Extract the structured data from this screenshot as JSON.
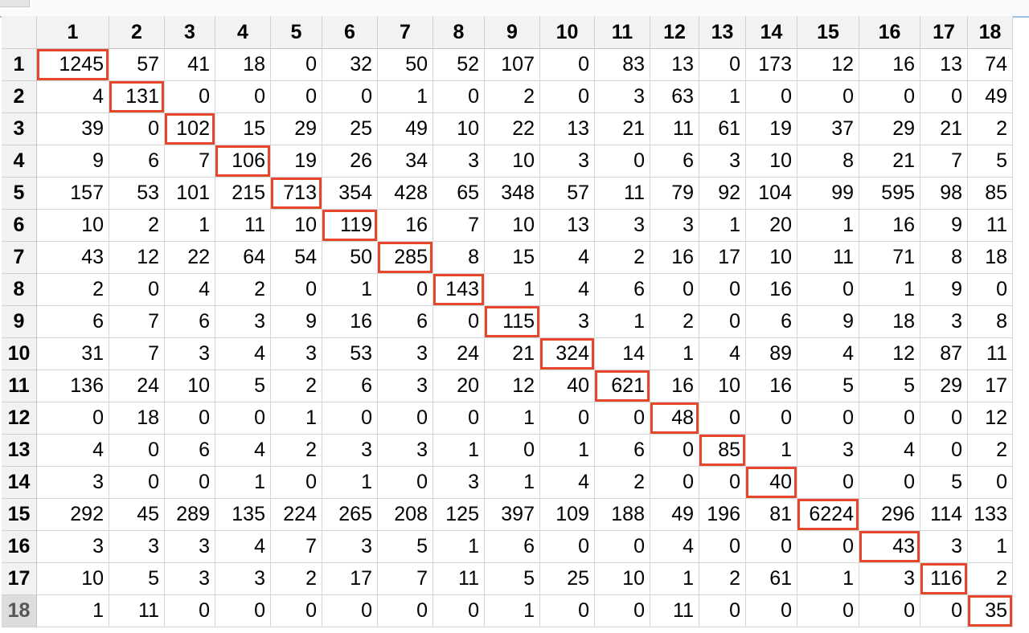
{
  "accent_color": "#e5472a",
  "selected_row": 18,
  "columns": [
    "1",
    "2",
    "3",
    "4",
    "5",
    "6",
    "7",
    "8",
    "9",
    "10",
    "11",
    "12",
    "13",
    "14",
    "15",
    "16",
    "17",
    "18"
  ],
  "rows": [
    {
      "label": "1",
      "cells": [
        "1245",
        "57",
        "41",
        "18",
        "0",
        "32",
        "50",
        "52",
        "107",
        "0",
        "83",
        "13",
        "0",
        "173",
        "12",
        "16",
        "13",
        "74"
      ]
    },
    {
      "label": "2",
      "cells": [
        "4",
        "131",
        "0",
        "0",
        "0",
        "0",
        "1",
        "0",
        "2",
        "0",
        "3",
        "63",
        "1",
        "0",
        "0",
        "0",
        "0",
        "49"
      ]
    },
    {
      "label": "3",
      "cells": [
        "39",
        "0",
        "102",
        "15",
        "29",
        "25",
        "49",
        "10",
        "22",
        "13",
        "21",
        "11",
        "61",
        "19",
        "37",
        "29",
        "21",
        "2"
      ]
    },
    {
      "label": "4",
      "cells": [
        "9",
        "6",
        "7",
        "106",
        "19",
        "26",
        "34",
        "3",
        "10",
        "3",
        "0",
        "6",
        "3",
        "10",
        "8",
        "21",
        "7",
        "5"
      ]
    },
    {
      "label": "5",
      "cells": [
        "157",
        "53",
        "101",
        "215",
        "713",
        "354",
        "428",
        "65",
        "348",
        "57",
        "11",
        "79",
        "92",
        "104",
        "99",
        "595",
        "98",
        "85"
      ]
    },
    {
      "label": "6",
      "cells": [
        "10",
        "2",
        "1",
        "11",
        "10",
        "119",
        "16",
        "7",
        "10",
        "13",
        "3",
        "3",
        "1",
        "20",
        "1",
        "16",
        "9",
        "11"
      ]
    },
    {
      "label": "7",
      "cells": [
        "43",
        "12",
        "22",
        "64",
        "54",
        "50",
        "285",
        "8",
        "15",
        "4",
        "2",
        "16",
        "17",
        "10",
        "11",
        "71",
        "8",
        "18"
      ]
    },
    {
      "label": "8",
      "cells": [
        "2",
        "0",
        "4",
        "2",
        "0",
        "1",
        "0",
        "143",
        "1",
        "4",
        "6",
        "0",
        "0",
        "16",
        "0",
        "1",
        "9",
        "0"
      ]
    },
    {
      "label": "9",
      "cells": [
        "6",
        "7",
        "6",
        "3",
        "9",
        "16",
        "6",
        "0",
        "115",
        "3",
        "1",
        "2",
        "0",
        "6",
        "9",
        "18",
        "3",
        "8"
      ]
    },
    {
      "label": "10",
      "cells": [
        "31",
        "7",
        "3",
        "4",
        "3",
        "53",
        "3",
        "24",
        "21",
        "324",
        "14",
        "1",
        "4",
        "89",
        "4",
        "12",
        "87",
        "11"
      ]
    },
    {
      "label": "11",
      "cells": [
        "136",
        "24",
        "10",
        "5",
        "2",
        "6",
        "3",
        "20",
        "12",
        "40",
        "621",
        "16",
        "10",
        "16",
        "5",
        "5",
        "29",
        "17"
      ]
    },
    {
      "label": "12",
      "cells": [
        "0",
        "18",
        "0",
        "0",
        "1",
        "0",
        "0",
        "0",
        "1",
        "0",
        "0",
        "48",
        "0",
        "0",
        "0",
        "0",
        "0",
        "12"
      ]
    },
    {
      "label": "13",
      "cells": [
        "4",
        "0",
        "6",
        "4",
        "2",
        "3",
        "3",
        "1",
        "0",
        "1",
        "6",
        "0",
        "85",
        "1",
        "3",
        "4",
        "0",
        "2"
      ]
    },
    {
      "label": "14",
      "cells": [
        "3",
        "0",
        "0",
        "1",
        "0",
        "1",
        "0",
        "3",
        "1",
        "4",
        "2",
        "0",
        "0",
        "40",
        "0",
        "0",
        "5",
        "0"
      ]
    },
    {
      "label": "15",
      "cells": [
        "292",
        "45",
        "289",
        "135",
        "224",
        "265",
        "208",
        "125",
        "397",
        "109",
        "188",
        "49",
        "196",
        "81",
        "6224",
        "296",
        "114",
        "133"
      ]
    },
    {
      "label": "16",
      "cells": [
        "3",
        "3",
        "3",
        "4",
        "7",
        "3",
        "5",
        "1",
        "6",
        "0",
        "0",
        "4",
        "0",
        "0",
        "0",
        "43",
        "3",
        "1"
      ]
    },
    {
      "label": "17",
      "cells": [
        "10",
        "5",
        "3",
        "3",
        "2",
        "17",
        "7",
        "11",
        "5",
        "25",
        "10",
        "1",
        "2",
        "61",
        "1",
        "3",
        "116",
        "2"
      ]
    },
    {
      "label": "18",
      "cells": [
        "1",
        "11",
        "0",
        "0",
        "0",
        "0",
        "0",
        "0",
        "1",
        "0",
        "0",
        "11",
        "0",
        "0",
        "0",
        "0",
        "0",
        "35"
      ]
    }
  ]
}
